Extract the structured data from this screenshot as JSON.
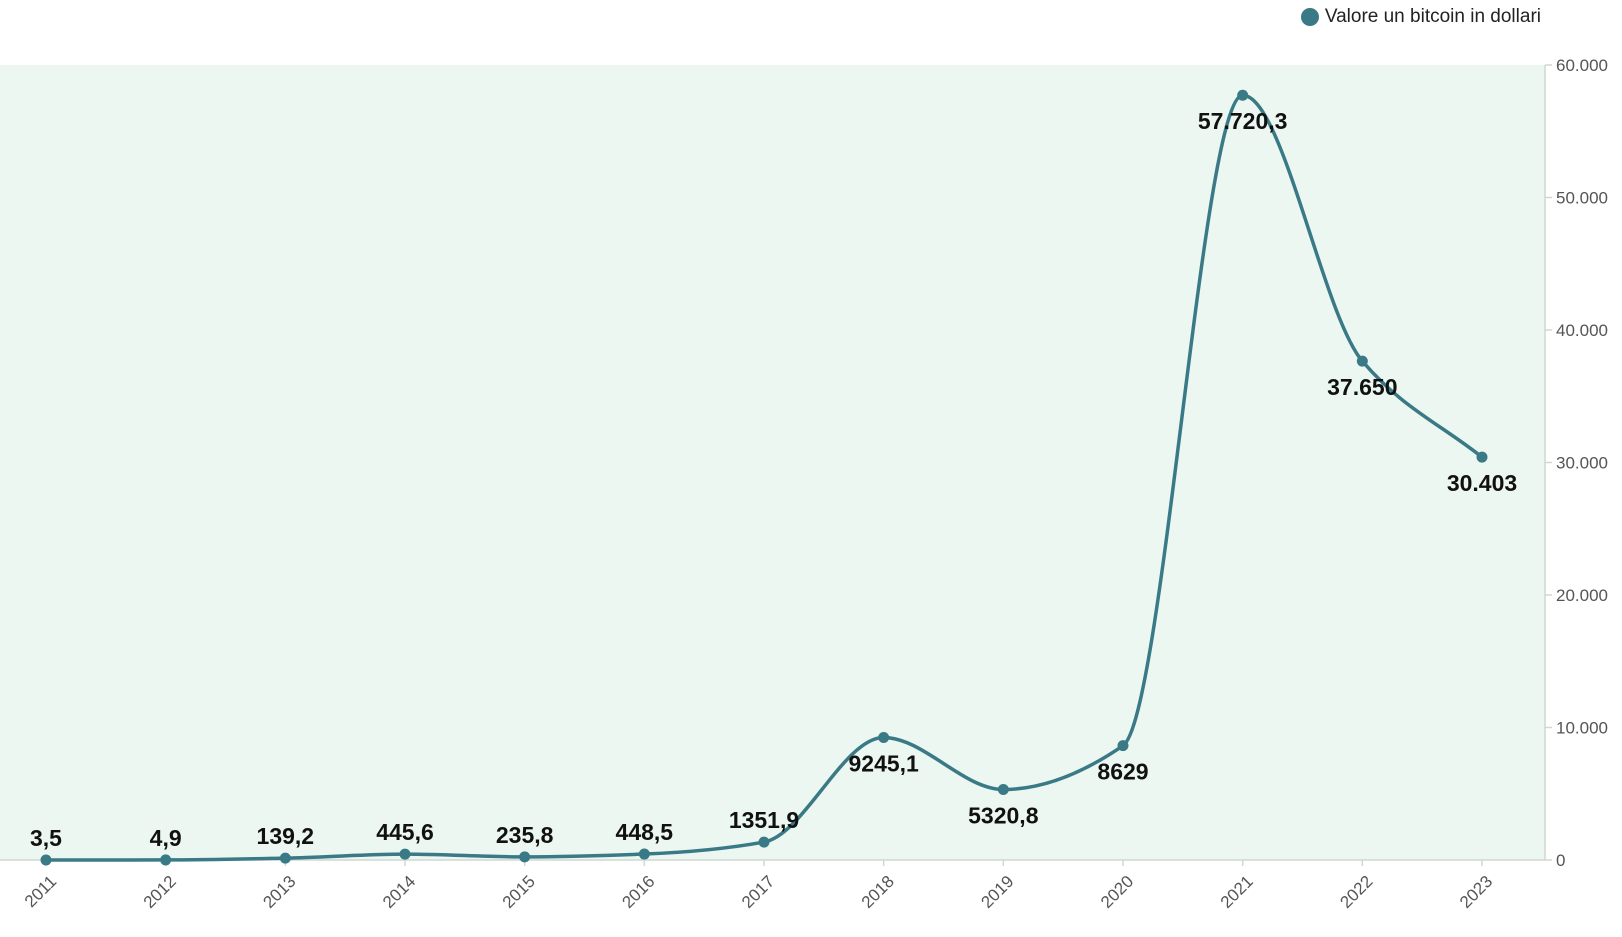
{
  "colors": {
    "series": "#3a7a86",
    "plot_background": "#ecf7f1",
    "axis": "#cfd8d4"
  },
  "legend": {
    "label": "Valore un bitcoin in dollari",
    "position": "top-right"
  },
  "chart_data": {
    "type": "line",
    "title": "",
    "xlabel": "",
    "ylabel": "",
    "x": [
      "2011",
      "2012",
      "2013",
      "2014",
      "2015",
      "2016",
      "2017",
      "2018",
      "2019",
      "2020",
      "2021",
      "2022",
      "2023"
    ],
    "series": [
      {
        "name": "Valore un bitcoin in dollari",
        "values": [
          3.5,
          4.9,
          139.2,
          445.6,
          235.8,
          448.5,
          1351.9,
          9245.1,
          5320.8,
          8629,
          57720.3,
          37650,
          30403
        ],
        "labels": [
          "3,5",
          "4,9",
          "139,2",
          "445,6",
          "235,8",
          "448,5",
          "1351,9",
          "9245,1",
          "5320,8",
          "8629",
          "57.720,3",
          "37.650",
          "30.403"
        ],
        "label_placement": [
          "above",
          "above",
          "above",
          "above",
          "above",
          "above",
          "above",
          "below",
          "below",
          "below",
          "below",
          "below",
          "below"
        ]
      }
    ],
    "ylim": [
      0,
      60000
    ],
    "yticks": [
      0,
      10000,
      20000,
      30000,
      40000,
      50000,
      60000
    ],
    "ytick_labels": [
      "0",
      "10.000",
      "20.000",
      "30.000",
      "40.000",
      "50.000",
      "60.000"
    ],
    "y_axis_side": "right",
    "xtick_rotation": "diagonal",
    "grid": false,
    "smooth": true
  }
}
